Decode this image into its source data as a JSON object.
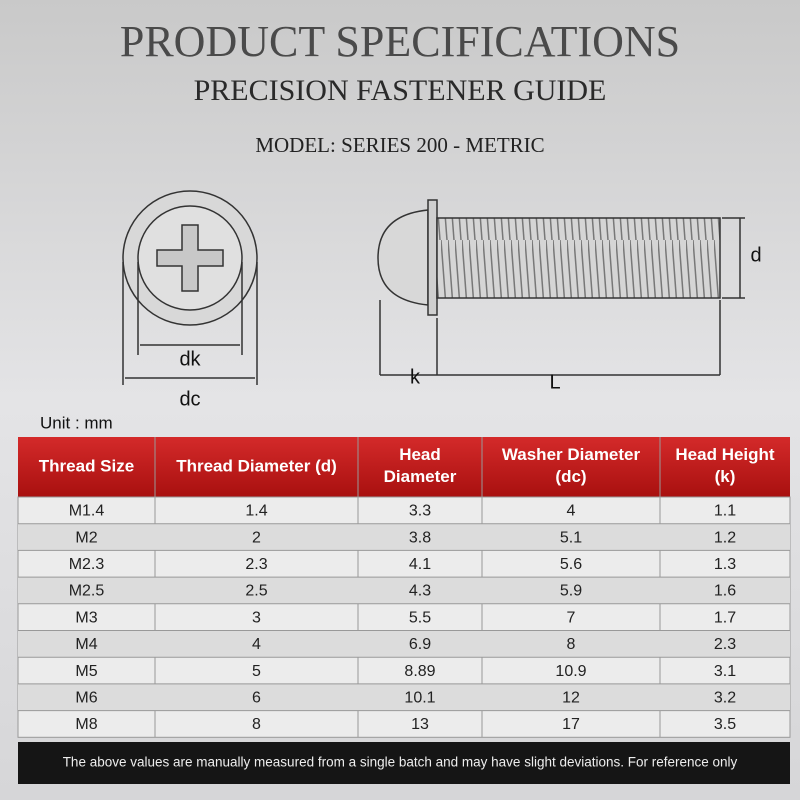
{
  "header": {
    "title": "PRODUCT SPECIFICATIONS",
    "subtitle": "PRECISION FASTENER GUIDE",
    "model": "MODEL: SERIES 200 - METRIC"
  },
  "diagram": {
    "dk": "dk",
    "dc": "dc",
    "d": "d",
    "k": "k",
    "L": "L"
  },
  "unit": "Unit : mm",
  "table": {
    "headers": [
      "Thread Size",
      "Thread Diameter (d)",
      "Head\nDiameter",
      "Washer Diameter\n(dc)",
      "Head Height\n(k)"
    ],
    "rows": [
      [
        "M1.4",
        "1.4",
        "3.3",
        "4",
        "1.1"
      ],
      [
        "M2",
        "2",
        "3.8",
        "5.1",
        "1.2"
      ],
      [
        "M2.3",
        "2.3",
        "4.1",
        "5.6",
        "1.3"
      ],
      [
        "M2.5",
        "2.5",
        "4.3",
        "5.9",
        "1.6"
      ],
      [
        "M3",
        "3",
        "5.5",
        "7",
        "1.7"
      ],
      [
        "M4",
        "4",
        "6.9",
        "8",
        "2.3"
      ],
      [
        "M5",
        "5",
        "8.89",
        "10.9",
        "3.1"
      ],
      [
        "M6",
        "6",
        "10.1",
        "12",
        "3.2"
      ],
      [
        "M8",
        "8",
        "13",
        "17",
        "3.5"
      ]
    ]
  },
  "footnote": "The above values are manually measured from a single batch and may have slight deviations. For reference only"
}
